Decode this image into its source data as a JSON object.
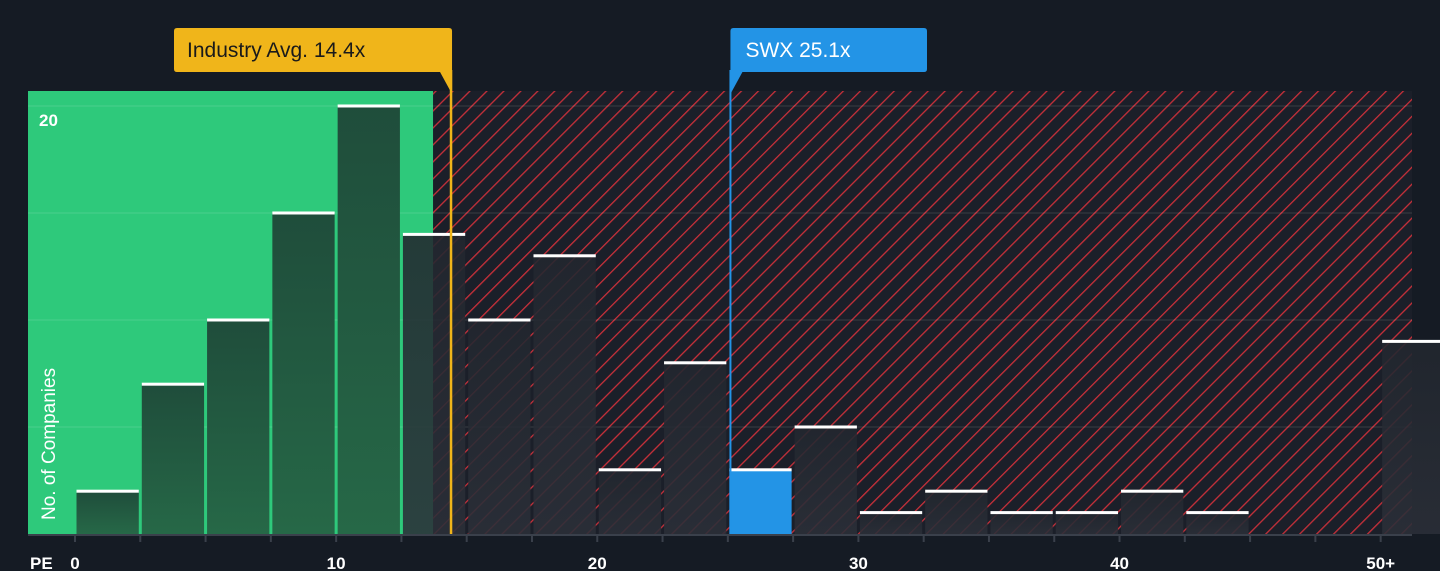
{
  "chart_data": {
    "type": "bar",
    "xlabel": "PE",
    "ylabel": "No. of Companies",
    "x_ticks": [
      "0",
      "10",
      "20",
      "30",
      "40",
      "50+"
    ],
    "y_ticks": [
      "20"
    ],
    "xlim": [
      -1.8,
      51.2
    ],
    "ylim": [
      0,
      20.7
    ],
    "bins": [
      {
        "start": 0.0,
        "end": 2.5,
        "value": 2
      },
      {
        "start": 2.5,
        "end": 5.0,
        "value": 7
      },
      {
        "start": 5.0,
        "end": 7.5,
        "value": 10
      },
      {
        "start": 7.5,
        "end": 10.0,
        "value": 15
      },
      {
        "start": 10.0,
        "end": 12.5,
        "value": 20
      },
      {
        "start": 12.5,
        "end": 15.0,
        "value": 14
      },
      {
        "start": 15.0,
        "end": 17.5,
        "value": 10
      },
      {
        "start": 17.5,
        "end": 20.0,
        "value": 13
      },
      {
        "start": 20.0,
        "end": 22.5,
        "value": 3
      },
      {
        "start": 22.5,
        "end": 25.0,
        "value": 8
      },
      {
        "start": 25.0,
        "end": 27.5,
        "value": 3,
        "highlight": true
      },
      {
        "start": 27.5,
        "end": 30.0,
        "value": 5
      },
      {
        "start": 30.0,
        "end": 32.5,
        "value": 1
      },
      {
        "start": 32.5,
        "end": 35.0,
        "value": 2
      },
      {
        "start": 35.0,
        "end": 37.5,
        "value": 1
      },
      {
        "start": 37.5,
        "end": 40.0,
        "value": 1
      },
      {
        "start": 40.0,
        "end": 42.5,
        "value": 2
      },
      {
        "start": 42.5,
        "end": 45.0,
        "value": 1
      },
      {
        "start": 50.0,
        "end": 52.5,
        "value": 9
      }
    ],
    "industry_avg": {
      "label": "Industry Avg. 14.4x",
      "value": 14.4
    },
    "company": {
      "label": "SWX 25.1x",
      "value": 25.1
    },
    "colors": {
      "background": "#151b24",
      "undervalued_zone": "#2ec97b",
      "overvalued_hatch": "#c8303a",
      "bar_fill": "#1f4d3b",
      "highlight_bar": "#2394e6",
      "industry_callout": "#f0b51a",
      "company_callout": "#2394e6"
    }
  }
}
